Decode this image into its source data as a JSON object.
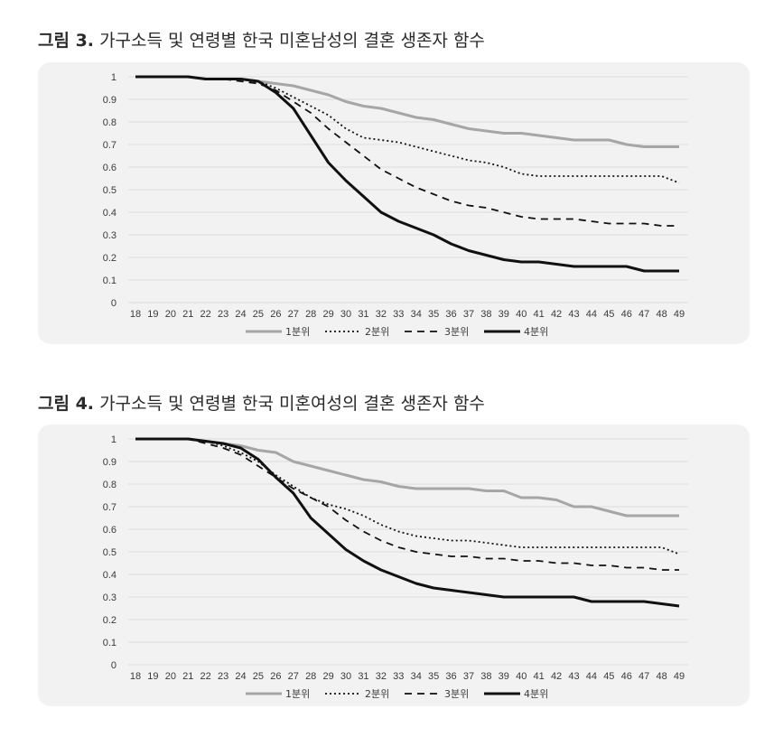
{
  "figures": [
    {
      "label": "그림 3.",
      "title": "가구소득 및 연령별 한국 미혼남성의 결혼 생존자 함수"
    },
    {
      "label": "그림 4.",
      "title": "가구소득 및 연령별 한국 미혼여성의 결혼 생존자 함수"
    }
  ],
  "colors": {
    "q1": "#a6a6a6",
    "q2": "#111111",
    "q3": "#111111",
    "q4": "#111111",
    "panel_bg": "#f2f2f2",
    "grid": "#dcdcdc"
  },
  "chart_data": [
    {
      "type": "line",
      "title": "가구소득 및 연령별 한국 미혼남성의 결혼 생존자 함수",
      "xlabel": "",
      "ylabel": "",
      "x": [
        18,
        19,
        20,
        21,
        22,
        23,
        24,
        25,
        26,
        27,
        28,
        29,
        30,
        31,
        32,
        33,
        34,
        35,
        36,
        37,
        38,
        39,
        40,
        41,
        42,
        43,
        44,
        45,
        46,
        47,
        48,
        49
      ],
      "y_ticks": [
        "1",
        "0.9",
        "0.8",
        "0.7",
        "0.6",
        "0.5",
        "0.4",
        "0.3",
        "0.2",
        "0.1",
        "0"
      ],
      "ylim": [
        0,
        1
      ],
      "grid": true,
      "legend_position": "bottom",
      "series": [
        {
          "name": "1분위",
          "style": "solid-gray",
          "values": [
            1,
            1,
            1,
            1,
            0.99,
            0.99,
            0.99,
            0.98,
            0.97,
            0.96,
            0.94,
            0.92,
            0.89,
            0.87,
            0.86,
            0.84,
            0.82,
            0.81,
            0.79,
            0.77,
            0.76,
            0.75,
            0.75,
            0.74,
            0.73,
            0.72,
            0.72,
            0.72,
            0.7,
            0.69,
            0.69,
            0.69
          ]
        },
        {
          "name": "2분위",
          "style": "dotted",
          "values": [
            1,
            1,
            1,
            1,
            0.99,
            0.99,
            0.99,
            0.98,
            0.95,
            0.91,
            0.87,
            0.83,
            0.77,
            0.73,
            0.72,
            0.71,
            0.69,
            0.67,
            0.65,
            0.63,
            0.62,
            0.6,
            0.57,
            0.56,
            0.56,
            0.56,
            0.56,
            0.56,
            0.56,
            0.56,
            0.56,
            0.53
          ]
        },
        {
          "name": "3분위",
          "style": "dashed",
          "values": [
            1,
            1,
            1,
            1,
            0.99,
            0.99,
            0.98,
            0.97,
            0.94,
            0.89,
            0.84,
            0.77,
            0.71,
            0.65,
            0.59,
            0.55,
            0.51,
            0.48,
            0.45,
            0.43,
            0.42,
            0.4,
            0.38,
            0.37,
            0.37,
            0.37,
            0.36,
            0.35,
            0.35,
            0.35,
            0.34,
            0.34
          ]
        },
        {
          "name": "4분위",
          "style": "solid-black",
          "values": [
            1,
            1,
            1,
            1,
            0.99,
            0.99,
            0.99,
            0.98,
            0.93,
            0.86,
            0.74,
            0.62,
            0.54,
            0.47,
            0.4,
            0.36,
            0.33,
            0.3,
            0.26,
            0.23,
            0.21,
            0.19,
            0.18,
            0.18,
            0.17,
            0.16,
            0.16,
            0.16,
            0.16,
            0.14,
            0.14,
            0.14
          ]
        }
      ]
    },
    {
      "type": "line",
      "title": "가구소득 및 연령별 한국 미혼여성의 결혼 생존자 함수",
      "xlabel": "",
      "ylabel": "",
      "x": [
        18,
        19,
        20,
        21,
        22,
        23,
        24,
        25,
        26,
        27,
        28,
        29,
        30,
        31,
        32,
        33,
        34,
        35,
        36,
        37,
        38,
        39,
        40,
        41,
        42,
        43,
        44,
        45,
        46,
        47,
        48,
        49
      ],
      "y_ticks": [
        "1",
        "0.9",
        "0.8",
        "0.7",
        "0.6",
        "0.5",
        "0.4",
        "0.3",
        "0.2",
        "0.1",
        "0"
      ],
      "ylim": [
        0,
        1
      ],
      "grid": true,
      "legend_position": "bottom",
      "series": [
        {
          "name": "1분위",
          "style": "solid-gray",
          "values": [
            1,
            1,
            1,
            1,
            0.99,
            0.98,
            0.97,
            0.95,
            0.94,
            0.9,
            0.88,
            0.86,
            0.84,
            0.82,
            0.81,
            0.79,
            0.78,
            0.78,
            0.78,
            0.78,
            0.77,
            0.77,
            0.74,
            0.74,
            0.73,
            0.7,
            0.7,
            0.68,
            0.66,
            0.66,
            0.66,
            0.66
          ]
        },
        {
          "name": "2분위",
          "style": "dotted",
          "values": [
            1,
            1,
            1,
            1,
            0.99,
            0.97,
            0.94,
            0.9,
            0.84,
            0.79,
            0.74,
            0.71,
            0.69,
            0.66,
            0.62,
            0.59,
            0.57,
            0.56,
            0.55,
            0.55,
            0.54,
            0.53,
            0.52,
            0.52,
            0.52,
            0.52,
            0.52,
            0.52,
            0.52,
            0.52,
            0.52,
            0.49
          ]
        },
        {
          "name": "3분위",
          "style": "dashed",
          "values": [
            1,
            1,
            1,
            1,
            0.98,
            0.96,
            0.93,
            0.88,
            0.83,
            0.78,
            0.74,
            0.7,
            0.64,
            0.59,
            0.55,
            0.52,
            0.5,
            0.49,
            0.48,
            0.48,
            0.47,
            0.47,
            0.46,
            0.46,
            0.45,
            0.45,
            0.44,
            0.44,
            0.43,
            0.43,
            0.42,
            0.42
          ]
        },
        {
          "name": "4분위",
          "style": "solid-black",
          "values": [
            1,
            1,
            1,
            1,
            0.99,
            0.98,
            0.96,
            0.91,
            0.83,
            0.76,
            0.65,
            0.58,
            0.51,
            0.46,
            0.42,
            0.39,
            0.36,
            0.34,
            0.33,
            0.32,
            0.31,
            0.3,
            0.3,
            0.3,
            0.3,
            0.3,
            0.28,
            0.28,
            0.28,
            0.28,
            0.27,
            0.26
          ]
        }
      ]
    }
  ]
}
